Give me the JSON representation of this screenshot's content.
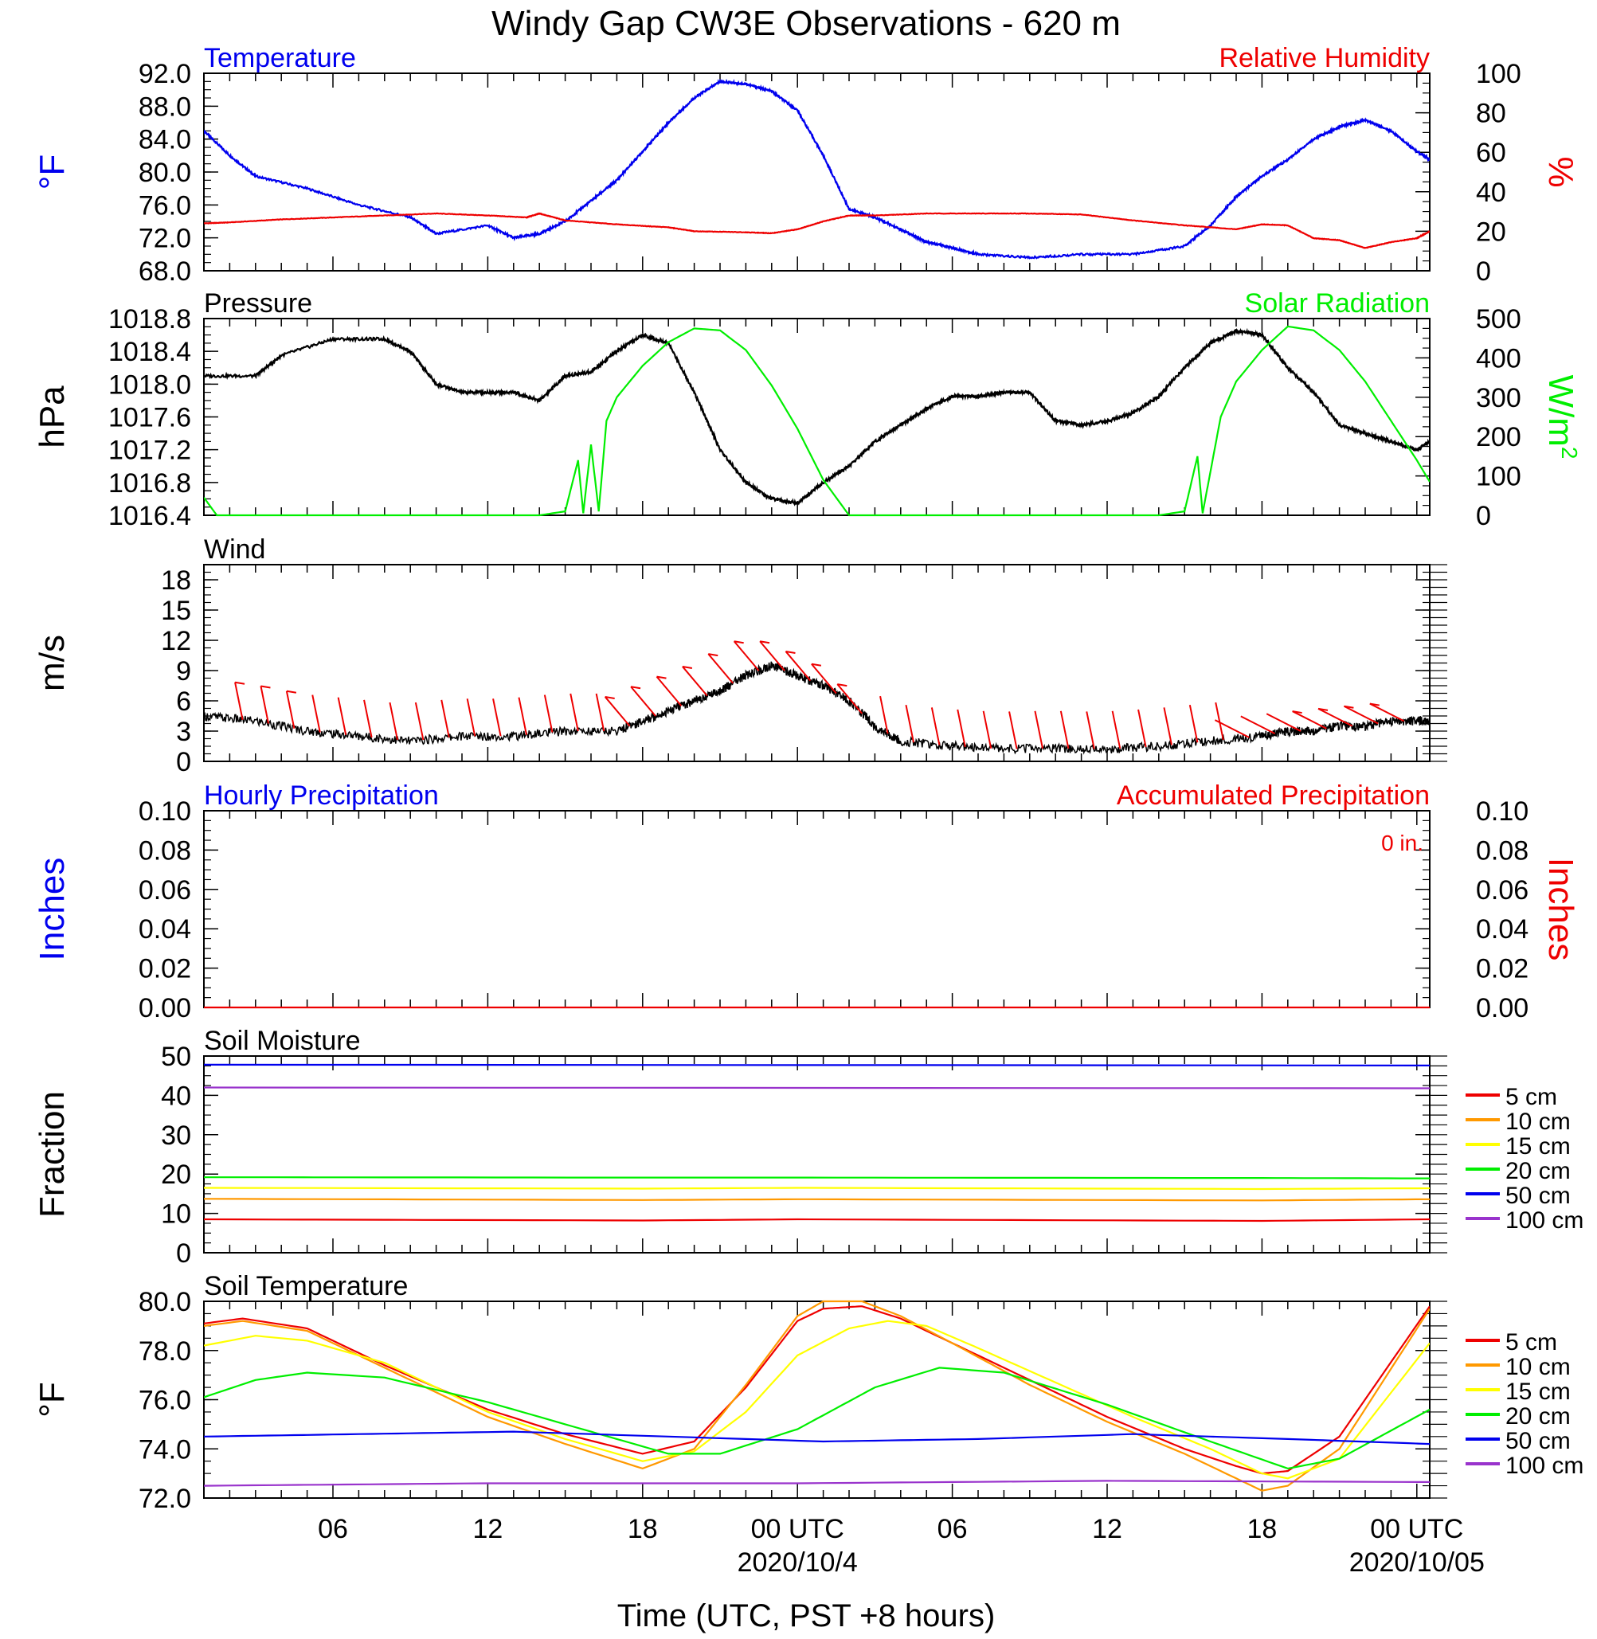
{
  "title": "Windy Gap CW3E Observations - 620 m",
  "colors": {
    "blue": "#0000ee",
    "red": "#ee0000",
    "green": "#00ee00",
    "black": "#000000",
    "orange": "#ff9900",
    "yellow": "#ffff00",
    "purple": "#9933cc"
  },
  "x_axis": {
    "title": "Time (UTC, PST +8 hours)",
    "ticks": [
      {
        "hour": 6,
        "label": "06"
      },
      {
        "hour": 12,
        "label": "12"
      },
      {
        "hour": 18,
        "label": "18"
      },
      {
        "hour": 24,
        "label": "00 UTC"
      },
      {
        "hour": 30,
        "label": "06"
      },
      {
        "hour": 36,
        "label": "12"
      },
      {
        "hour": 42,
        "label": "18"
      },
      {
        "hour": 48,
        "label": "00 UTC"
      }
    ],
    "dates": [
      {
        "hour": 24,
        "label": "2020/10/4"
      },
      {
        "hour": 48,
        "label": "2020/10/05"
      }
    ],
    "range_hours": [
      1,
      48.5
    ]
  },
  "chart_data": [
    {
      "type": "line",
      "title_left": "Temperature",
      "title_right": "Relative Humidity",
      "ylabel_left": "°F",
      "ylabel_right": "%",
      "ylim_left": [
        68,
        92
      ],
      "yticks_left": [
        "92.0",
        "88.0",
        "84.0",
        "80.0",
        "76.0",
        "72.0",
        "68.0"
      ],
      "ylim_right": [
        0,
        100
      ],
      "yticks_right": [
        "100",
        "80",
        "60",
        "40",
        "20",
        "0"
      ],
      "series": [
        {
          "name": "Temperature",
          "color": "#0000ee",
          "axis": "left",
          "x": [
            1,
            2,
            3,
            5,
            7,
            9,
            10,
            12,
            13,
            14,
            15,
            16,
            17,
            18,
            19,
            20,
            21,
            22,
            23,
            24,
            25,
            26,
            27,
            28,
            29,
            30,
            31,
            33,
            35,
            37,
            39,
            40,
            41,
            42,
            43,
            44,
            45,
            46,
            47,
            48,
            48.5
          ],
          "y": [
            85,
            82,
            79.5,
            78,
            76,
            74.5,
            72.5,
            73.5,
            72,
            72.5,
            74,
            76.5,
            79,
            82.5,
            86,
            89,
            91,
            90.7,
            89.8,
            87.5,
            82,
            75.5,
            74.5,
            73,
            71.5,
            70.8,
            70,
            69.6,
            70,
            70,
            71,
            73.5,
            77,
            79.5,
            81.5,
            84,
            85.5,
            86.3,
            85,
            82.5,
            81.5
          ]
        },
        {
          "name": "Relative Humidity",
          "color": "#ee0000",
          "axis": "right",
          "x": [
            1,
            2,
            4,
            6,
            8,
            10,
            12,
            13.5,
            14,
            15,
            17,
            19,
            20,
            22,
            23,
            24,
            25,
            26,
            27,
            29,
            31,
            33,
            35,
            37,
            39,
            41,
            42,
            43,
            44,
            45,
            46,
            47,
            48,
            48.5
          ],
          "y": [
            24,
            24.5,
            26,
            27,
            28,
            29,
            28,
            27,
            29,
            25.5,
            23.5,
            22,
            20,
            19.5,
            19,
            21,
            25,
            28,
            28,
            29,
            29,
            29,
            28.5,
            25.5,
            23,
            21,
            23.5,
            23,
            16.5,
            15.5,
            11.5,
            14.5,
            16.5,
            20
          ]
        }
      ]
    },
    {
      "type": "line",
      "title_left": "Pressure",
      "title_right": "Solar Radiation",
      "ylabel_left": "hPa",
      "ylabel_right": "W/m2",
      "ylim_left": [
        1016.4,
        1018.8
      ],
      "yticks_left": [
        "1018.8",
        "1018.4",
        "1018.0",
        "1017.6",
        "1017.2",
        "1016.8",
        "1016.4"
      ],
      "ylim_right": [
        0,
        500
      ],
      "yticks_right": [
        "500",
        "400",
        "300",
        "200",
        "100",
        "0"
      ],
      "series": [
        {
          "name": "Pressure",
          "color": "#000000",
          "axis": "left",
          "x": [
            1,
            3,
            4,
            6,
            8,
            9,
            10,
            11,
            12,
            13,
            14,
            15,
            16,
            17,
            18,
            19,
            20,
            21,
            22,
            23,
            24,
            25,
            26,
            27,
            28,
            29,
            30,
            31,
            32,
            33,
            34,
            35,
            36,
            37,
            38,
            39,
            40,
            41,
            42,
            43,
            44,
            45,
            46,
            47,
            48,
            48.5
          ],
          "y": [
            1018.1,
            1018.1,
            1018.35,
            1018.55,
            1018.55,
            1018.4,
            1018.0,
            1017.9,
            1017.9,
            1017.9,
            1017.8,
            1018.1,
            1018.15,
            1018.4,
            1018.6,
            1018.5,
            1017.9,
            1017.2,
            1016.8,
            1016.6,
            1016.55,
            1016.8,
            1017.0,
            1017.3,
            1017.5,
            1017.7,
            1017.85,
            1017.85,
            1017.9,
            1017.9,
            1017.55,
            1017.5,
            1017.55,
            1017.65,
            1017.85,
            1018.2,
            1018.5,
            1018.65,
            1018.6,
            1018.2,
            1017.9,
            1017.5,
            1017.4,
            1017.3,
            1017.2,
            1017.3
          ]
        },
        {
          "name": "Solar Radiation",
          "color": "#00ee00",
          "axis": "right",
          "x": [
            1,
            1.5,
            14,
            15,
            15.5,
            15.7,
            16,
            16.3,
            16.6,
            17,
            18,
            19,
            20,
            21,
            22,
            23,
            24,
            25,
            26,
            38,
            39,
            39.5,
            39.7,
            40,
            40.4,
            41,
            42,
            43,
            44,
            45,
            46,
            47,
            48,
            48.5
          ],
          "y": [
            45,
            0,
            0,
            10,
            140,
            5,
            180,
            10,
            240,
            300,
            380,
            440,
            475,
            470,
            420,
            330,
            220,
            90,
            0,
            0,
            10,
            150,
            5,
            110,
            250,
            340,
            420,
            480,
            470,
            420,
            340,
            240,
            140,
            85
          ]
        }
      ]
    },
    {
      "type": "line",
      "title_left": "Wind",
      "ylabel_left": "m/s",
      "ylim_left": [
        0,
        19.5
      ],
      "yticks_left": [
        "18",
        "15",
        "12",
        "9",
        "6",
        "3",
        "0"
      ],
      "series": [
        {
          "name": "Wind",
          "color": "#000000",
          "axis": "left",
          "x": [
            1,
            3,
            5,
            7,
            9,
            11,
            13,
            15,
            17,
            18,
            19,
            20,
            21,
            22,
            23,
            24,
            25,
            26,
            27,
            28,
            30,
            32,
            34,
            36,
            38,
            40,
            42,
            43,
            44,
            45,
            46,
            47,
            48,
            48.5
          ],
          "y": [
            4.5,
            4,
            3,
            2.5,
            2,
            2.5,
            2.5,
            3,
            3,
            4,
            5,
            6,
            7,
            8.5,
            9.5,
            8.5,
            7.5,
            6,
            3.5,
            2,
            1.5,
            1.2,
            1.3,
            1.2,
            1.5,
            2,
            2.5,
            3,
            3,
            3.5,
            3.5,
            4,
            4,
            4
          ]
        }
      ]
    },
    {
      "type": "line",
      "title_left": "Hourly Precipitation",
      "title_right": "Accumulated Precipitation",
      "annotation": "0 in.",
      "ylabel_left": "Inches",
      "ylabel_right": "Inches",
      "ylim_left": [
        0,
        0.1
      ],
      "yticks_left": [
        "0.10",
        "0.08",
        "0.06",
        "0.04",
        "0.02",
        "0.00"
      ],
      "ylim_right": [
        0,
        0.1
      ],
      "yticks_right": [
        "0.10",
        "0.08",
        "0.06",
        "0.04",
        "0.02",
        "0.00"
      ],
      "series": [
        {
          "name": "Accumulated Precipitation",
          "color": "#ee0000",
          "axis": "left",
          "x": [
            1,
            48.5
          ],
          "y": [
            0,
            0
          ]
        }
      ]
    },
    {
      "type": "line",
      "title_left": "Soil Moisture",
      "ylabel_left": "Fraction",
      "ylim_left": [
        0,
        50
      ],
      "yticks_left": [
        "50",
        "40",
        "30",
        "20",
        "10",
        "0"
      ],
      "series": [
        {
          "name": "5 cm",
          "color": "#ee0000",
          "axis": "left",
          "x": [
            1,
            18,
            24,
            42,
            48.5
          ],
          "y": [
            8.5,
            8.2,
            8.5,
            8.1,
            8.5
          ]
        },
        {
          "name": "10 cm",
          "color": "#ff9900",
          "axis": "left",
          "x": [
            1,
            18,
            24,
            42,
            48.5
          ],
          "y": [
            13.7,
            13.4,
            13.6,
            13.3,
            13.6
          ]
        },
        {
          "name": "15 cm",
          "color": "#ffff00",
          "axis": "left",
          "x": [
            1,
            18,
            24,
            42,
            48.5
          ],
          "y": [
            16.5,
            16.3,
            16.5,
            16.2,
            16.4
          ]
        },
        {
          "name": "20 cm",
          "color": "#00ee00",
          "axis": "left",
          "x": [
            1,
            18,
            24,
            42,
            48.5
          ],
          "y": [
            19.2,
            19.1,
            19.1,
            19.0,
            18.9
          ]
        },
        {
          "name": "50 cm",
          "color": "#0000ee",
          "axis": "left",
          "x": [
            1,
            48.5
          ],
          "y": [
            47.8,
            47.6
          ]
        },
        {
          "name": "100 cm",
          "color": "#9933cc",
          "axis": "left",
          "x": [
            1,
            48.5
          ],
          "y": [
            42.0,
            41.8
          ]
        }
      ]
    },
    {
      "type": "line",
      "title_left": "Soil Temperature",
      "ylabel_left": "°F",
      "ylim_left": [
        72,
        80
      ],
      "yticks_left": [
        "80.0",
        "78.0",
        "76.0",
        "74.0",
        "72.0"
      ],
      "series": [
        {
          "name": "5 cm",
          "color": "#ee0000",
          "axis": "left",
          "x": [
            1,
            2.5,
            5,
            8,
            12,
            15,
            18,
            20,
            22,
            24,
            25,
            26.5,
            28,
            30,
            33,
            36,
            39,
            41,
            42,
            43,
            45,
            48.5
          ],
          "y": [
            79.1,
            79.3,
            78.9,
            77.4,
            75.6,
            74.6,
            73.8,
            74.3,
            76.5,
            79.2,
            79.7,
            79.8,
            79.3,
            78.3,
            76.8,
            75.3,
            74.0,
            73.3,
            73.0,
            73.1,
            74.5,
            79.8
          ]
        },
        {
          "name": "10 cm",
          "color": "#ff9900",
          "axis": "left",
          "x": [
            1,
            2.5,
            5,
            8,
            12,
            15,
            18,
            20,
            22,
            24,
            25,
            26.5,
            28,
            30,
            33,
            36,
            39,
            41,
            42,
            43,
            45,
            48.5
          ],
          "y": [
            79.0,
            79.2,
            78.8,
            77.3,
            75.3,
            74.2,
            73.2,
            74.0,
            76.6,
            79.4,
            80.0,
            80.0,
            79.4,
            78.3,
            76.6,
            75.1,
            73.8,
            72.8,
            72.3,
            72.5,
            74.0,
            79.7
          ]
        },
        {
          "name": "15 cm",
          "color": "#ffff00",
          "axis": "left",
          "x": [
            1,
            3,
            5,
            8,
            12,
            15,
            18,
            20,
            22,
            24,
            26,
            27.5,
            29,
            31,
            34,
            37,
            40,
            42,
            43,
            45,
            48.5
          ],
          "y": [
            78.2,
            78.6,
            78.4,
            77.5,
            75.5,
            74.4,
            73.5,
            73.9,
            75.5,
            77.8,
            78.9,
            79.2,
            79.0,
            78.1,
            76.7,
            75.3,
            74.0,
            73.0,
            72.8,
            73.6,
            78.3
          ]
        },
        {
          "name": "20 cm",
          "color": "#00ee00",
          "axis": "left",
          "x": [
            1,
            3,
            5,
            8,
            12,
            16,
            19,
            21,
            24,
            27,
            29.5,
            32,
            36,
            40,
            43,
            45,
            48.5
          ],
          "y": [
            76.1,
            76.8,
            77.1,
            76.9,
            75.9,
            74.7,
            73.8,
            73.8,
            74.8,
            76.5,
            77.3,
            77.1,
            75.8,
            74.3,
            73.2,
            73.6,
            75.6
          ]
        },
        {
          "name": "50 cm",
          "color": "#0000ee",
          "axis": "left",
          "x": [
            1,
            7,
            13,
            19,
            25,
            31,
            37,
            43,
            48.5
          ],
          "y": [
            74.5,
            74.6,
            74.7,
            74.5,
            74.3,
            74.4,
            74.6,
            74.4,
            74.2
          ]
        },
        {
          "name": "100 cm",
          "color": "#9933cc",
          "axis": "left",
          "x": [
            1,
            12,
            24,
            36,
            48.5
          ],
          "y": [
            72.5,
            72.6,
            72.6,
            72.7,
            72.65
          ]
        }
      ]
    }
  ]
}
